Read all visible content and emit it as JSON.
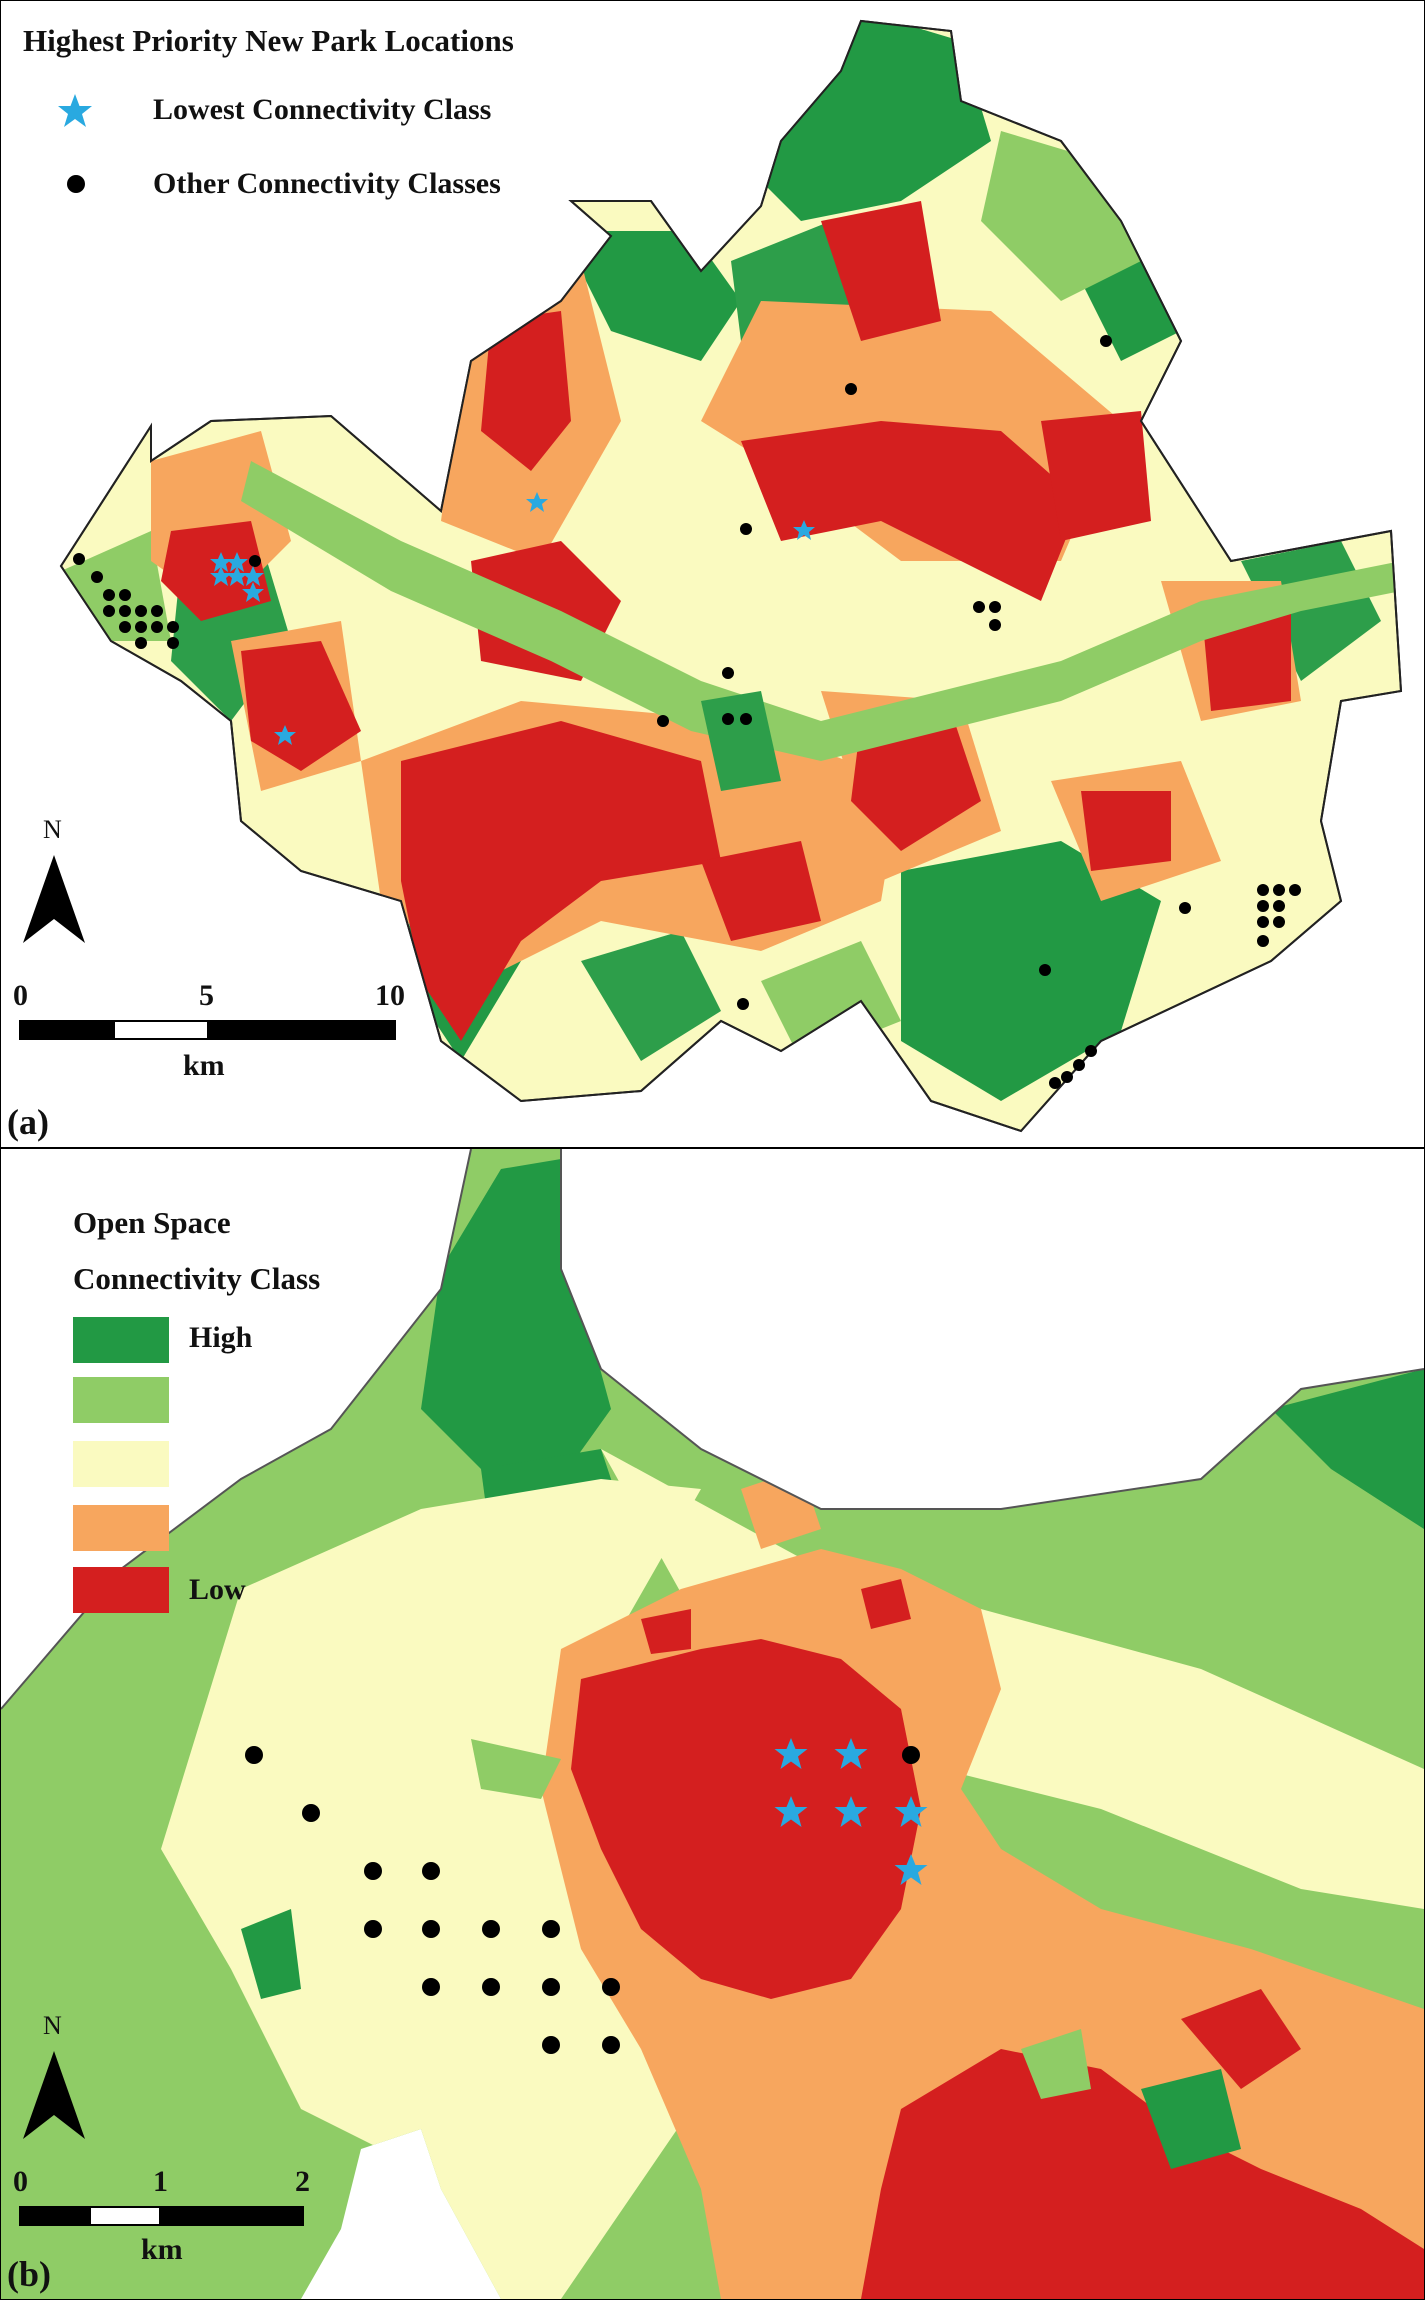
{
  "panel_a": {
    "label": "(a)",
    "legend": {
      "title": "Highest Priority New Park Locations",
      "items": [
        {
          "symbol": "star",
          "color": "#29a9e0",
          "label": "Lowest Connectivity Class"
        },
        {
          "symbol": "dot",
          "color": "#000000",
          "label": "Other Connectivity Classes"
        }
      ]
    },
    "north": "N",
    "scale": {
      "ticks": [
        "0",
        "5",
        "10"
      ],
      "unit": "km"
    }
  },
  "panel_b": {
    "label": "(b)",
    "legend": {
      "title_line1": "Open Space",
      "title_line2": "Connectivity Class",
      "classes": [
        {
          "label": "High",
          "color": "#229944"
        },
        {
          "label": "",
          "color": "#8fcc66"
        },
        {
          "label": "",
          "color": "#fafac0"
        },
        {
          "label": "",
          "color": "#f7a65e"
        },
        {
          "label": "Low",
          "color": "#d41f1f"
        }
      ]
    },
    "north": "N",
    "scale": {
      "ticks": [
        "0",
        "1",
        "2"
      ],
      "unit": "km"
    }
  }
}
